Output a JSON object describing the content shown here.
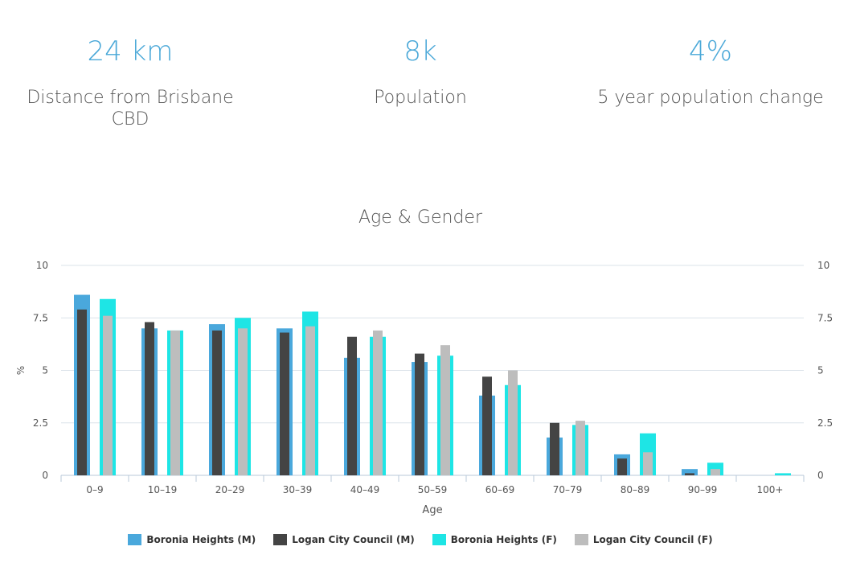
{
  "stats": {
    "distance": {
      "value": "24 km",
      "label": "Distance from Brisbane CBD"
    },
    "population": {
      "value": "8k",
      "label": "Population"
    },
    "change": {
      "value": "4%",
      "label": "5 year population change"
    }
  },
  "chart_data": {
    "type": "bar",
    "title": "Age & Gender",
    "xlabel": "Age",
    "ylabel": "%",
    "ylim": [
      0,
      10
    ],
    "yticks": [
      "0",
      "2.5",
      "5",
      "7.5",
      "10"
    ],
    "categories": [
      "0–9",
      "10–19",
      "20–29",
      "30–39",
      "40–49",
      "50–59",
      "60–69",
      "70–79",
      "80–89",
      "90–99",
      "100+"
    ],
    "series": [
      {
        "name": "Boronia Heights (M)",
        "color": "#4aa8dc",
        "values": [
          8.6,
          7.0,
          7.2,
          7.0,
          5.6,
          5.4,
          3.8,
          1.8,
          1.0,
          0.3,
          0
        ]
      },
      {
        "name": "Logan City Council (M)",
        "color": "#444444",
        "values": [
          7.9,
          7.3,
          6.9,
          6.8,
          6.6,
          5.8,
          4.7,
          2.5,
          0.8,
          0.1,
          0
        ]
      },
      {
        "name": "Boronia Heights (F)",
        "color": "#1ee5e5",
        "values": [
          8.4,
          6.9,
          7.5,
          7.8,
          6.6,
          5.7,
          4.3,
          2.4,
          2.0,
          0.6,
          0.1
        ]
      },
      {
        "name": "Logan City Council (F)",
        "color": "#bdbdbd",
        "values": [
          7.6,
          6.9,
          7.0,
          7.1,
          6.9,
          6.2,
          5.0,
          2.6,
          1.1,
          0.3,
          0
        ]
      }
    ]
  }
}
